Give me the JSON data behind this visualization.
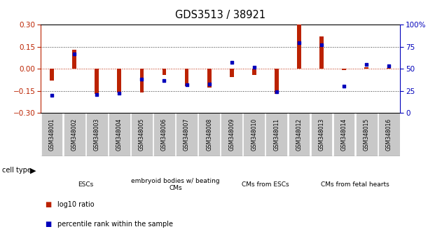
{
  "title": "GDS3513 / 38921",
  "samples": [
    "GSM348001",
    "GSM348002",
    "GSM348003",
    "GSM348004",
    "GSM348005",
    "GSM348006",
    "GSM348007",
    "GSM348008",
    "GSM348009",
    "GSM348010",
    "GSM348011",
    "GSM348012",
    "GSM348013",
    "GSM348014",
    "GSM348015",
    "GSM348016"
  ],
  "log10_ratio": [
    -0.08,
    0.13,
    -0.17,
    -0.16,
    -0.16,
    -0.04,
    -0.12,
    -0.13,
    -0.055,
    -0.04,
    -0.17,
    0.3,
    0.22,
    -0.01,
    0.01,
    0.005
  ],
  "percentile_rank": [
    20,
    67,
    21,
    22,
    38,
    37,
    32,
    33,
    57,
    52,
    24,
    80,
    77,
    30,
    55,
    53
  ],
  "cell_type_groups": [
    {
      "label": "ESCs",
      "start": 0,
      "end": 3,
      "color": "#aaeaaa"
    },
    {
      "label": "embryoid bodies w/ beating\nCMs",
      "start": 4,
      "end": 7,
      "color": "#ccf5cc"
    },
    {
      "label": "CMs from ESCs",
      "start": 8,
      "end": 11,
      "color": "#aaeaaa"
    },
    {
      "label": "CMs from fetal hearts",
      "start": 12,
      "end": 15,
      "color": "#55dd55"
    }
  ],
  "ylim_left": [
    -0.3,
    0.3
  ],
  "ylim_right": [
    0,
    100
  ],
  "yticks_left": [
    -0.3,
    -0.15,
    0,
    0.15,
    0.3
  ],
  "yticks_right": [
    0,
    25,
    50,
    75,
    100
  ],
  "bar_color": "#BB2200",
  "dot_color": "#0000BB",
  "left_axis_color": "#BB2200",
  "right_axis_color": "#0000BB"
}
